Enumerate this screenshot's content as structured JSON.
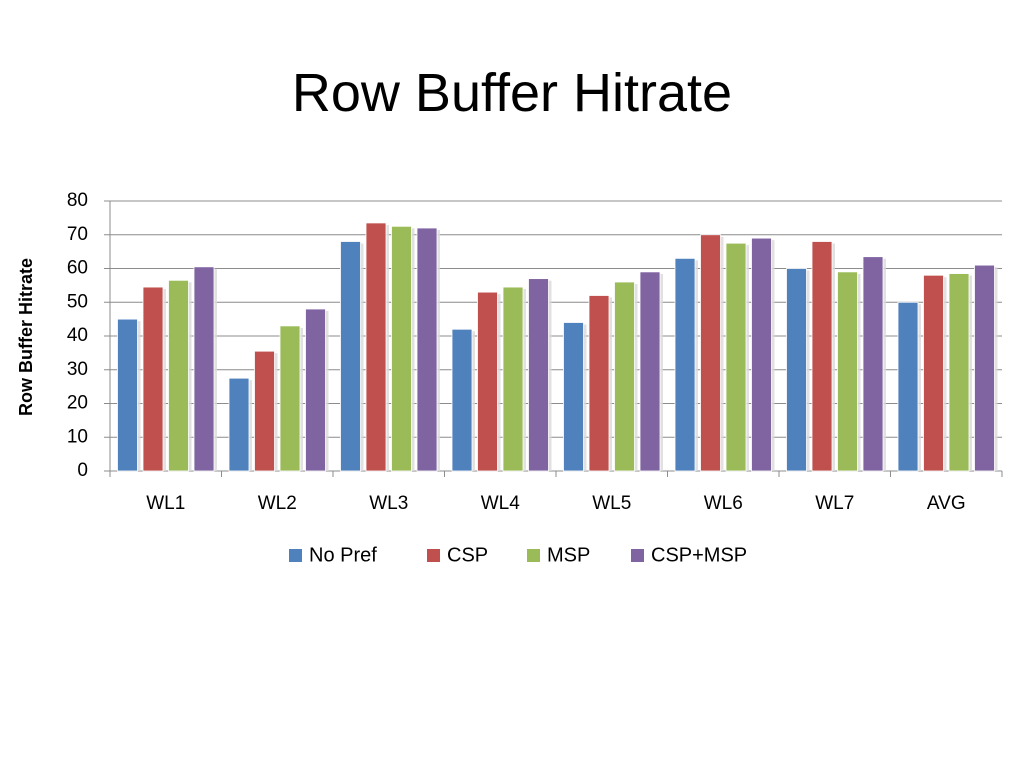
{
  "slide": {
    "title": "Row Buffer Hitrate"
  },
  "chart_data": {
    "type": "bar",
    "title": "Row Buffer Hitrate",
    "xlabel": "",
    "ylabel": "Row Buffer Hitrate",
    "ylim": [
      0,
      80
    ],
    "yticks": [
      0,
      10,
      20,
      30,
      40,
      50,
      60,
      70,
      80
    ],
    "grid": true,
    "legend_position": "bottom",
    "categories": [
      "WL1",
      "WL2",
      "WL3",
      "WL4",
      "WL5",
      "WL6",
      "WL7",
      "AVG"
    ],
    "series": [
      {
        "name": "No Pref",
        "color": "#4F81BD",
        "values": [
          45,
          27.5,
          68,
          42,
          44,
          63,
          60,
          50
        ]
      },
      {
        "name": "CSP",
        "color": "#C0504D",
        "values": [
          54.5,
          35.5,
          73.5,
          53,
          52,
          70,
          68,
          58
        ]
      },
      {
        "name": "MSP",
        "color": "#9BBB59",
        "values": [
          56.5,
          43,
          72.5,
          54.5,
          56,
          67.5,
          59,
          58.5
        ]
      },
      {
        "name": "CSP+MSP",
        "color": "#8064A2",
        "values": [
          60.5,
          48,
          72,
          57,
          59,
          69,
          63.5,
          61
        ]
      }
    ]
  }
}
